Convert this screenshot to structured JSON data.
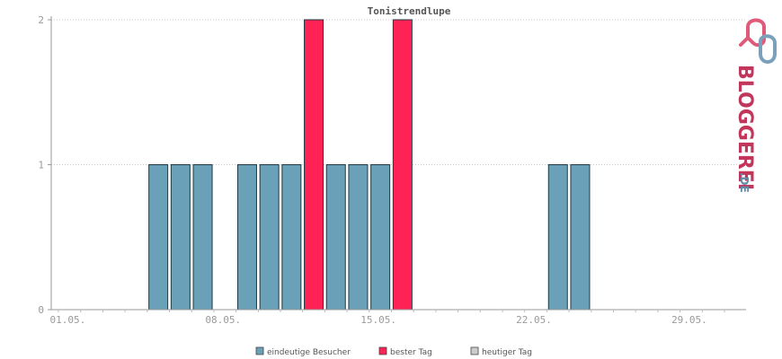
{
  "chart_data": {
    "type": "bar",
    "title": "Tonistrendlupe",
    "x_tick_labels": [
      "01.05.",
      "08.05.",
      "15.05.",
      "22.05.",
      "29.05."
    ],
    "y_tick_labels": [
      "0",
      "1",
      "2"
    ],
    "ylim": [
      0,
      2
    ],
    "grid": true,
    "legend_placement": "bottom-center",
    "days": 31,
    "bars": [
      {
        "day": 5,
        "value": 1,
        "series": "eindeutige Besucher"
      },
      {
        "day": 6,
        "value": 1,
        "series": "eindeutige Besucher"
      },
      {
        "day": 7,
        "value": 1,
        "series": "eindeutige Besucher"
      },
      {
        "day": 9,
        "value": 1,
        "series": "eindeutige Besucher"
      },
      {
        "day": 10,
        "value": 1,
        "series": "eindeutige Besucher"
      },
      {
        "day": 11,
        "value": 1,
        "series": "eindeutige Besucher"
      },
      {
        "day": 12,
        "value": 2,
        "series": "bester Tag"
      },
      {
        "day": 13,
        "value": 1,
        "series": "eindeutige Besucher"
      },
      {
        "day": 14,
        "value": 1,
        "series": "eindeutige Besucher"
      },
      {
        "day": 15,
        "value": 1,
        "series": "eindeutige Besucher"
      },
      {
        "day": 16,
        "value": 2,
        "series": "bester Tag"
      },
      {
        "day": 23,
        "value": 1,
        "series": "eindeutige Besucher"
      },
      {
        "day": 24,
        "value": 1,
        "series": "eindeutige Besucher"
      }
    ],
    "legend": [
      {
        "label": "eindeutige Besucher",
        "color": "#6aa0b8"
      },
      {
        "label": "bester Tag",
        "color": "#ff2255"
      },
      {
        "label": "heutiger Tag",
        "color": "#cccccc"
      }
    ],
    "colors": {
      "eindeutige Besucher": "#6aa0b8",
      "bester Tag": "#ff2255",
      "heutiger Tag": "#cccccc"
    }
  },
  "logo": {
    "text": "BLOGGEREI",
    "suffix": ".DE"
  }
}
